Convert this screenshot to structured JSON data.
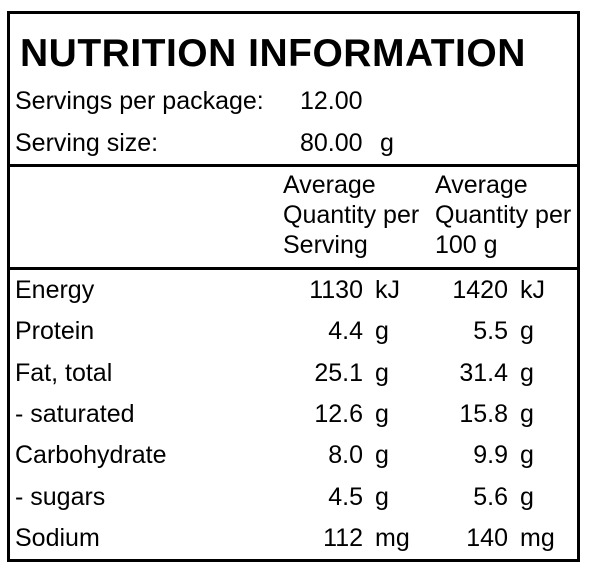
{
  "panel": {
    "title": "NUTRITION INFORMATION",
    "servings": [
      {
        "label": "Servings per package:",
        "value": "12.00",
        "unit": ""
      },
      {
        "label": "Serving size:",
        "value": "80.00",
        "unit": "g"
      }
    ],
    "col_headers": {
      "per_serving": {
        "line1": "Average",
        "line2": "Quantity per",
        "line3": "Serving"
      },
      "per_100g": {
        "line1": "Average",
        "line2": "Quantity per",
        "line3": "100 g"
      }
    },
    "rows": [
      {
        "nutrient": "Energy",
        "qty_serving": "1130",
        "unit_serving": "kJ",
        "qty_100g": "1420",
        "unit_100g": "kJ"
      },
      {
        "nutrient": "Protein",
        "qty_serving": "4.4",
        "unit_serving": "g",
        "qty_100g": "5.5",
        "unit_100g": "g"
      },
      {
        "nutrient": "Fat, total",
        "qty_serving": "25.1",
        "unit_serving": "g",
        "qty_100g": "31.4",
        "unit_100g": "g"
      },
      {
        "nutrient": "- saturated",
        "qty_serving": "12.6",
        "unit_serving": "g",
        "qty_100g": "15.8",
        "unit_100g": "g"
      },
      {
        "nutrient": "Carbohydrate",
        "qty_serving": "8.0",
        "unit_serving": "g",
        "qty_100g": "9.9",
        "unit_100g": "g"
      },
      {
        "nutrient": "- sugars",
        "qty_serving": "4.5",
        "unit_serving": "g",
        "qty_100g": "5.6",
        "unit_100g": "g"
      },
      {
        "nutrient": "Sodium",
        "qty_serving": "112",
        "unit_serving": "mg",
        "qty_100g": "140",
        "unit_100g": "mg"
      }
    ],
    "colors": {
      "border": "#000000",
      "background": "#ffffff",
      "text": "#000000"
    }
  }
}
